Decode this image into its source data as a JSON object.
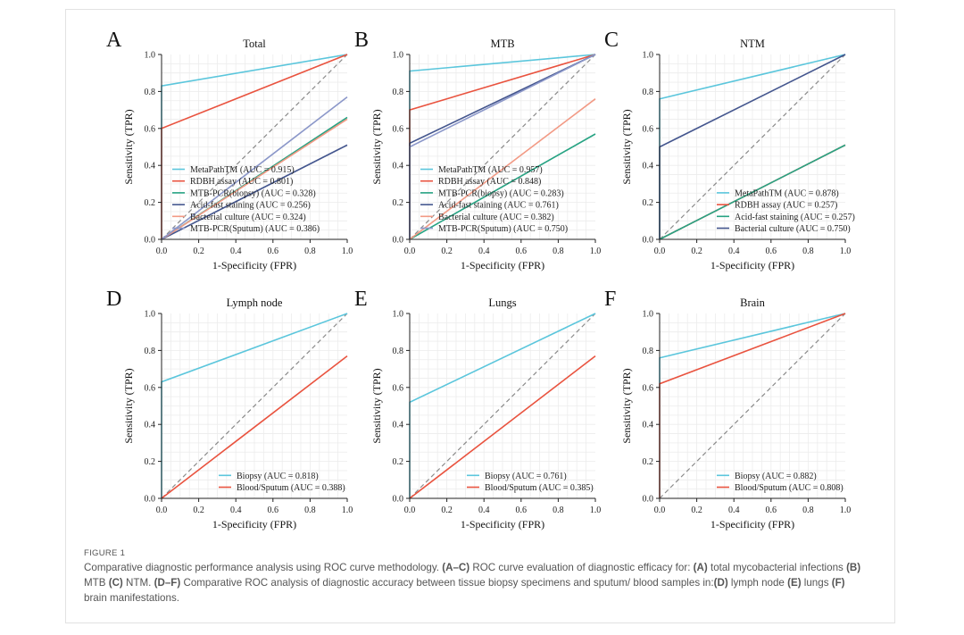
{
  "colors": {
    "metapath": "#5bc6dc",
    "rdbh": "#e9533f",
    "mtb_pcr_biopsy": "#27a383",
    "acid_fast": "#44568e",
    "bacterial_culture": "#f29a85",
    "mtb_pcr_sputum": "#8b97c9",
    "diagonal": "#8a8a8a"
  },
  "figure": {
    "label": "FIGURE 1",
    "caption": [
      {
        "t": "Comparative diagnostic performance analysis using ROC curve methodology. ",
        "b": false
      },
      {
        "t": "(A–C)",
        "b": true
      },
      {
        "t": " ROC curve evaluation of diagnostic efficacy for: ",
        "b": false
      },
      {
        "t": "(A)",
        "b": true
      },
      {
        "t": " total mycobacterial infections ",
        "b": false
      },
      {
        "t": "(B)",
        "b": true
      },
      {
        "t": " MTB ",
        "b": false
      },
      {
        "t": "(C)",
        "b": true
      },
      {
        "t": " NTM. ",
        "b": false
      },
      {
        "t": "(D–F)",
        "b": true
      },
      {
        "t": " Comparative ROC analysis of diagnostic accuracy between tissue biopsy specimens and sputum/ blood samples in:",
        "b": false
      },
      {
        "t": "(D)",
        "b": true
      },
      {
        "t": " lymph node ",
        "b": false
      },
      {
        "t": "(E)",
        "b": true
      },
      {
        "t": " lungs ",
        "b": false
      },
      {
        "t": "(F)",
        "b": true
      },
      {
        "t": " brain manifestations.",
        "b": false
      }
    ]
  },
  "chart_data": [
    {
      "panel": "A",
      "type": "line",
      "title": "Total",
      "xlabel": "1-Specificity (FPR)",
      "ylabel": "Sensitivity (TPR)",
      "xlim": [
        0,
        1
      ],
      "ylim": [
        0,
        1
      ],
      "xticks": [
        "0.0",
        "0.2",
        "0.4",
        "0.6",
        "0.8",
        "1.0"
      ],
      "yticks": [
        "0.0",
        "0.2",
        "0.4",
        "0.6",
        "0.8",
        "1.0"
      ],
      "grid": true,
      "legend_position": "lower-left",
      "series": [
        {
          "name": "MetaPathTM (AUC = 0.915)",
          "color_key": "metapath",
          "points": [
            [
              0,
              0
            ],
            [
              0,
              0.83
            ],
            [
              1,
              1
            ]
          ]
        },
        {
          "name": "RDBH assay (AUC = 0.801)",
          "color_key": "rdbh",
          "points": [
            [
              0,
              0
            ],
            [
              0,
              0.6
            ],
            [
              1,
              1
            ]
          ]
        },
        {
          "name": "MTB-PCR(biopsy) (AUC = 0.328)",
          "color_key": "mtb_pcr_biopsy",
          "points": [
            [
              0,
              0
            ],
            [
              1,
              0.66
            ]
          ]
        },
        {
          "name": "Acid-fast staining (AUC = 0.256)",
          "color_key": "acid_fast",
          "points": [
            [
              0,
              0
            ],
            [
              1,
              0.51
            ]
          ]
        },
        {
          "name": "Bacterial culture (AUC = 0.324)",
          "color_key": "bacterial_culture",
          "points": [
            [
              0,
              0
            ],
            [
              1,
              0.65
            ]
          ]
        },
        {
          "name": "MTB-PCR(Sputum) (AUC = 0.386)",
          "color_key": "mtb_pcr_sputum",
          "points": [
            [
              0,
              0
            ],
            [
              1,
              0.77
            ]
          ]
        }
      ]
    },
    {
      "panel": "B",
      "type": "line",
      "title": "MTB",
      "xlabel": "1-Specificity (FPR)",
      "ylabel": "Sensitivity (TPR)",
      "xlim": [
        0,
        1
      ],
      "ylim": [
        0,
        1
      ],
      "xticks": [
        "0.0",
        "0.2",
        "0.4",
        "0.6",
        "0.8",
        "1.0"
      ],
      "yticks": [
        "0.0",
        "0.2",
        "0.4",
        "0.6",
        "0.8",
        "1.0"
      ],
      "grid": true,
      "legend_position": "lower-left",
      "series": [
        {
          "name": "MetaPathTM (AUC = 0.957)",
          "color_key": "metapath",
          "points": [
            [
              0,
              0
            ],
            [
              0,
              0.91
            ],
            [
              1,
              1
            ]
          ]
        },
        {
          "name": "RDBH assay (AUC = 0.848)",
          "color_key": "rdbh",
          "points": [
            [
              0,
              0
            ],
            [
              0,
              0.7
            ],
            [
              1,
              1
            ]
          ]
        },
        {
          "name": "MTB-PCR(biopsy) (AUC = 0.283)",
          "color_key": "mtb_pcr_biopsy",
          "points": [
            [
              0,
              0
            ],
            [
              1,
              0.57
            ]
          ]
        },
        {
          "name": "Acid-fast staining (AUC = 0.761)",
          "color_key": "acid_fast",
          "points": [
            [
              0,
              0
            ],
            [
              0,
              0.52
            ],
            [
              1,
              1
            ]
          ]
        },
        {
          "name": "Bacterial culture (AUC = 0.382)",
          "color_key": "bacterial_culture",
          "points": [
            [
              0,
              0
            ],
            [
              1,
              0.76
            ]
          ]
        },
        {
          "name": "MTB-PCR(Sputum) (AUC = 0.750)",
          "color_key": "mtb_pcr_sputum",
          "points": [
            [
              0,
              0
            ],
            [
              0,
              0.5
            ],
            [
              1,
              1
            ]
          ]
        }
      ]
    },
    {
      "panel": "C",
      "type": "line",
      "title": "NTM",
      "xlabel": "1-Specificity (FPR)",
      "ylabel": "Sensitivity (TPR)",
      "xlim": [
        0,
        1
      ],
      "ylim": [
        0,
        1
      ],
      "xticks": [
        "0.0",
        "0.2",
        "0.4",
        "0.6",
        "0.8",
        "1.0"
      ],
      "yticks": [
        "0.0",
        "0.2",
        "0.4",
        "0.6",
        "0.8",
        "1.0"
      ],
      "grid": true,
      "legend_position": "lower-right",
      "series": [
        {
          "name": "MetaPathTM (AUC = 0.878)",
          "color_key": "metapath",
          "points": [
            [
              0,
              0
            ],
            [
              0,
              0.76
            ],
            [
              1,
              1
            ]
          ]
        },
        {
          "name": "RDBH assay (AUC = 0.257)",
          "color_key": "rdbh",
          "points": [
            [
              0,
              0
            ],
            [
              1,
              0.51
            ]
          ]
        },
        {
          "name": "Acid-fast staining (AUC = 0.257)",
          "color_key": "mtb_pcr_biopsy",
          "points": [
            [
              0,
              0
            ],
            [
              1,
              0.51
            ]
          ]
        },
        {
          "name": "Bacterial culture (AUC = 0.750)",
          "color_key": "acid_fast",
          "points": [
            [
              0,
              0
            ],
            [
              0,
              0.5
            ],
            [
              1,
              1
            ]
          ]
        }
      ]
    },
    {
      "panel": "D",
      "type": "line",
      "title": "Lymph node",
      "xlabel": "1-Specificity (FPR)",
      "ylabel": "Sensitivity (TPR)",
      "xlim": [
        0,
        1
      ],
      "ylim": [
        0,
        1
      ],
      "xticks": [
        "0.0",
        "0.2",
        "0.4",
        "0.6",
        "0.8",
        "1.0"
      ],
      "yticks": [
        "0.0",
        "0.2",
        "0.4",
        "0.6",
        "0.8",
        "1.0"
      ],
      "grid": true,
      "legend_position": "lower-right",
      "series": [
        {
          "name": "Biopsy (AUC = 0.818)",
          "color_key": "metapath",
          "points": [
            [
              0,
              0
            ],
            [
              0,
              0.63
            ],
            [
              1,
              1
            ]
          ]
        },
        {
          "name": "Blood/Sputum (AUC = 0.388)",
          "color_key": "rdbh",
          "points": [
            [
              0,
              0
            ],
            [
              1,
              0.77
            ]
          ]
        }
      ]
    },
    {
      "panel": "E",
      "type": "line",
      "title": "Lungs",
      "xlabel": "1-Specificity (FPR)",
      "ylabel": "Sensitivity (TPR)",
      "xlim": [
        0,
        1
      ],
      "ylim": [
        0,
        1
      ],
      "xticks": [
        "0.0",
        "0.2",
        "0.4",
        "0.6",
        "0.8",
        "1.0"
      ],
      "yticks": [
        "0.0",
        "0.2",
        "0.4",
        "0.6",
        "0.8",
        "1.0"
      ],
      "grid": true,
      "legend_position": "lower-right",
      "series": [
        {
          "name": "Biopsy (AUC = 0.761)",
          "color_key": "metapath",
          "points": [
            [
              0,
              0
            ],
            [
              0,
              0.52
            ],
            [
              1,
              1
            ]
          ]
        },
        {
          "name": "Blood/Sputum (AUC = 0.385)",
          "color_key": "rdbh",
          "points": [
            [
              0,
              0
            ],
            [
              1,
              0.77
            ]
          ]
        }
      ]
    },
    {
      "panel": "F",
      "type": "line",
      "title": "Brain",
      "xlabel": "1-Specificity (FPR)",
      "ylabel": "Sensitivity (TPR)",
      "xlim": [
        0,
        1
      ],
      "ylim": [
        0,
        1
      ],
      "xticks": [
        "0.0",
        "0.2",
        "0.4",
        "0.6",
        "0.8",
        "1.0"
      ],
      "yticks": [
        "0.0",
        "0.2",
        "0.4",
        "0.6",
        "0.8",
        "1.0"
      ],
      "grid": true,
      "legend_position": "lower-right",
      "series": [
        {
          "name": "Biopsy (AUC = 0.882)",
          "color_key": "metapath",
          "points": [
            [
              0,
              0
            ],
            [
              0,
              0.76
            ],
            [
              1,
              1
            ]
          ]
        },
        {
          "name": "Blood/Sputum (AUC = 0.808)",
          "color_key": "rdbh",
          "points": [
            [
              0,
              0
            ],
            [
              0,
              0.62
            ],
            [
              1,
              1
            ]
          ]
        }
      ]
    }
  ]
}
